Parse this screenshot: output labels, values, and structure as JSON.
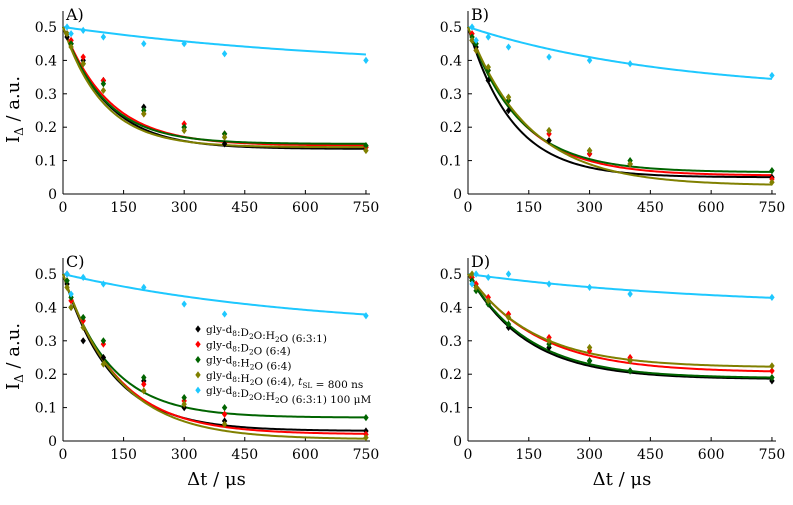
{
  "chart_data": [
    {
      "type": "scatter",
      "panel_label": "A)",
      "xlabel": "",
      "ylabel": "I_Δ / a.u.",
      "xlim": [
        0,
        760
      ],
      "ylim": [
        0,
        0.5
      ],
      "series": [
        {
          "name": "gly-d8:D2O:H2O (6:3:1)",
          "color": "#000000",
          "x": [
            10,
            20,
            50,
            100,
            200,
            300,
            400,
            750
          ],
          "y": [
            0.47,
            0.45,
            0.4,
            0.34,
            0.26,
            0.2,
            0.15,
            0.14
          ],
          "fit": {
            "A": 0.5,
            "C": 0.135,
            "tau": 110
          }
        },
        {
          "name": "gly-d8:D2O (6:4)",
          "color": "#ff0000",
          "x": [
            10,
            20,
            50,
            100,
            200,
            300,
            400,
            750
          ],
          "y": [
            0.48,
            0.46,
            0.41,
            0.34,
            0.24,
            0.21,
            0.18,
            0.14
          ],
          "fit": {
            "A": 0.5,
            "C": 0.145,
            "tau": 115
          }
        },
        {
          "name": "gly-d8:H2O (6:4)",
          "color": "#006400",
          "x": [
            10,
            20,
            50,
            100,
            200,
            300,
            400,
            750
          ],
          "y": [
            0.48,
            0.45,
            0.39,
            0.33,
            0.25,
            0.2,
            0.18,
            0.145
          ],
          "fit": {
            "A": 0.5,
            "C": 0.15,
            "tau": 105
          }
        },
        {
          "name": "gly-d8:H2O (6:4), tSL = 800 ns",
          "color": "#808000",
          "x": [
            10,
            20,
            50,
            100,
            200,
            300,
            400,
            750
          ],
          "y": [
            0.48,
            0.44,
            0.39,
            0.31,
            0.24,
            0.19,
            0.17,
            0.13
          ],
          "fit": {
            "A": 0.5,
            "C": 0.14,
            "tau": 100
          }
        },
        {
          "name": "gly-d8:D2O:H2O (6:3:1) 100 μM",
          "color": "#1ec8ff",
          "x": [
            10,
            20,
            50,
            100,
            200,
            300,
            400,
            750
          ],
          "y": [
            0.5,
            0.48,
            0.49,
            0.47,
            0.45,
            0.45,
            0.42,
            0.4
          ],
          "fit": {
            "A": 0.5,
            "C": 0.37,
            "tau": 750
          }
        }
      ]
    },
    {
      "type": "scatter",
      "panel_label": "B)",
      "xlabel": "",
      "ylabel": "",
      "xlim": [
        0,
        760
      ],
      "ylim": [
        0,
        0.5
      ],
      "series": [
        {
          "name": "gly-d8:D2O:H2O (6:3:1)",
          "color": "#000000",
          "x": [
            10,
            20,
            50,
            100,
            200,
            300,
            400,
            750
          ],
          "y": [
            0.46,
            0.44,
            0.34,
            0.25,
            0.16,
            0.12,
            0.09,
            0.05
          ],
          "fit": {
            "A": 0.5,
            "C": 0.05,
            "tau": 110
          }
        },
        {
          "name": "gly-d8:D2O (6:4)",
          "color": "#ff0000",
          "x": [
            10,
            20,
            50,
            100,
            200,
            300,
            400,
            750
          ],
          "y": [
            0.48,
            0.43,
            0.37,
            0.28,
            0.18,
            0.12,
            0.09,
            0.045
          ],
          "fit": {
            "A": 0.5,
            "C": 0.055,
            "tau": 130
          }
        },
        {
          "name": "gly-d8:H2O (6:4)",
          "color": "#006400",
          "x": [
            10,
            20,
            50,
            100,
            200,
            300,
            400,
            750
          ],
          "y": [
            0.47,
            0.45,
            0.37,
            0.28,
            0.19,
            0.13,
            0.1,
            0.07
          ],
          "fit": {
            "A": 0.5,
            "C": 0.065,
            "tau": 125
          }
        },
        {
          "name": "gly-d8:H2O (6:4), tSL = 800 ns",
          "color": "#808000",
          "x": [
            10,
            20,
            50,
            100,
            200,
            300,
            400,
            750
          ],
          "y": [
            0.46,
            0.43,
            0.38,
            0.29,
            0.19,
            0.13,
            0.09,
            0.035
          ],
          "fit": {
            "A": 0.5,
            "C": 0.025,
            "tau": 150
          }
        },
        {
          "name": "gly-d8:D2O:H2O (6:3:1) 100 μM",
          "color": "#1ec8ff",
          "x": [
            10,
            20,
            50,
            100,
            200,
            300,
            400,
            750
          ],
          "y": [
            0.5,
            0.46,
            0.47,
            0.44,
            0.41,
            0.4,
            0.39,
            0.355
          ],
          "fit": {
            "A": 0.5,
            "C": 0.3,
            "tau": 500
          }
        }
      ]
    },
    {
      "type": "scatter",
      "panel_label": "C)",
      "xlabel": "Δt / μs",
      "ylabel": "I_Δ / a.u.",
      "xlim": [
        0,
        760
      ],
      "ylim": [
        0,
        0.5
      ],
      "series": [
        {
          "name": "gly-d8:D2O:H2O (6:3:1)",
          "color": "#000000",
          "x": [
            10,
            20,
            50,
            100,
            200,
            300,
            400,
            750
          ],
          "y": [
            0.47,
            0.4,
            0.3,
            0.25,
            0.18,
            0.1,
            0.06,
            0.03
          ],
          "fit": {
            "A": 0.5,
            "C": 0.03,
            "tau": 120
          }
        },
        {
          "name": "gly-d8:D2O (6:4)",
          "color": "#ff0000",
          "x": [
            10,
            20,
            50,
            100,
            200,
            300,
            400,
            750
          ],
          "y": [
            0.5,
            0.42,
            0.36,
            0.29,
            0.17,
            0.12,
            0.08,
            0.02
          ],
          "fit": {
            "A": 0.5,
            "C": 0.02,
            "tau": 130
          }
        },
        {
          "name": "gly-d8:H2O (6:4)",
          "color": "#006400",
          "x": [
            10,
            20,
            50,
            100,
            200,
            300,
            400,
            750
          ],
          "y": [
            0.48,
            0.43,
            0.37,
            0.3,
            0.19,
            0.13,
            0.1,
            0.07
          ],
          "fit": {
            "A": 0.5,
            "C": 0.07,
            "tau": 115
          }
        },
        {
          "name": "gly-d8:H2O (6:4), tSL = 800 ns",
          "color": "#808000",
          "x": [
            10,
            20,
            50,
            100,
            200,
            300,
            400,
            750
          ],
          "y": [
            0.46,
            0.4,
            0.34,
            0.23,
            0.15,
            0.11,
            0.05,
            0.01
          ],
          "fit": {
            "A": 0.5,
            "C": 0.005,
            "tau": 135
          }
        },
        {
          "name": "gly-d8:D2O:H2O (6:3:1) 100 μM",
          "color": "#1ec8ff",
          "x": [
            10,
            20,
            50,
            100,
            200,
            300,
            400,
            750
          ],
          "y": [
            0.5,
            0.44,
            0.49,
            0.47,
            0.46,
            0.41,
            0.38,
            0.375
          ],
          "fit": {
            "A": 0.5,
            "C": 0.33,
            "tau": 600
          }
        }
      ]
    },
    {
      "type": "scatter",
      "panel_label": "D)",
      "xlabel": "Δt / μs",
      "ylabel": "",
      "xlim": [
        0,
        760
      ],
      "ylim": [
        0,
        0.5
      ],
      "series": [
        {
          "name": "gly-d8:D2O:H2O (6:3:1)",
          "color": "#000000",
          "x": [
            10,
            20,
            50,
            100,
            200,
            300,
            400,
            750
          ],
          "y": [
            0.48,
            0.46,
            0.41,
            0.34,
            0.28,
            0.24,
            0.21,
            0.18
          ],
          "fit": {
            "A": 0.5,
            "C": 0.185,
            "tau": 145
          }
        },
        {
          "name": "gly-d8:D2O (6:4)",
          "color": "#ff0000",
          "x": [
            10,
            20,
            50,
            100,
            200,
            300,
            400,
            750
          ],
          "y": [
            0.49,
            0.47,
            0.43,
            0.38,
            0.31,
            0.27,
            0.25,
            0.21
          ],
          "fit": {
            "A": 0.5,
            "C": 0.205,
            "tau": 170
          }
        },
        {
          "name": "gly-d8:H2O (6:4)",
          "color": "#006400",
          "x": [
            10,
            20,
            50,
            100,
            200,
            300,
            400,
            750
          ],
          "y": [
            0.48,
            0.45,
            0.41,
            0.35,
            0.29,
            0.24,
            0.21,
            0.19
          ],
          "fit": {
            "A": 0.5,
            "C": 0.188,
            "tau": 150
          }
        },
        {
          "name": "gly-d8:H2O (6:4), tSL = 800 ns",
          "color": "#808000",
          "x": [
            10,
            20,
            50,
            100,
            200,
            300,
            400,
            750
          ],
          "y": [
            0.5,
            0.46,
            0.42,
            0.37,
            0.3,
            0.28,
            0.24,
            0.225
          ],
          "fit": {
            "A": 0.5,
            "C": 0.22,
            "tau": 160
          }
        },
        {
          "name": "gly-d8:D2O:H2O (6:3:1) 100 μM",
          "color": "#1ec8ff",
          "x": [
            10,
            20,
            50,
            100,
            200,
            300,
            400,
            750
          ],
          "y": [
            0.47,
            0.5,
            0.49,
            0.5,
            0.47,
            0.46,
            0.44,
            0.43
          ],
          "fit": {
            "A": 0.5,
            "C": 0.4,
            "tau": 600
          }
        }
      ]
    }
  ],
  "axes": {
    "x_ticks": [
      "0",
      "150",
      "300",
      "450",
      "600",
      "750"
    ],
    "y_ticks": [
      "0",
      "0.1",
      "0.2",
      "0.3",
      "0.4",
      "0.5"
    ],
    "ylabel_main": "I",
    "ylabel_sub": "Δ",
    "ylabel_rest": " / a.u.",
    "xlabel": "Δt / μs"
  },
  "legend": [
    {
      "label": "gly-d8:D2O:H2O (6:3:1)",
      "color": "#000000"
    },
    {
      "label": "gly-d8:D2O (6:4)",
      "color": "#ff0000"
    },
    {
      "label": "gly-d8:H2O (6:4)",
      "color": "#006400"
    },
    {
      "label": "gly-d8:H2O (6:4), tSL = 800 ns",
      "color": "#808000"
    },
    {
      "label": "gly-d8:D2O:H2O (6:3:1) 100 μM",
      "color": "#1ec8ff"
    }
  ]
}
